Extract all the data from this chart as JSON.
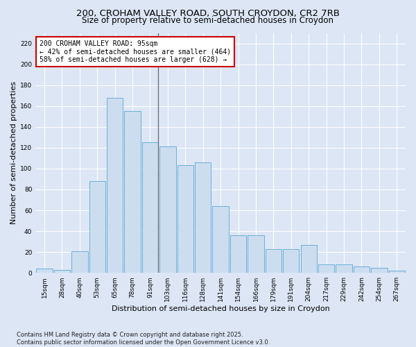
{
  "title_line1": "200, CROHAM VALLEY ROAD, SOUTH CROYDON, CR2 7RB",
  "title_line2": "Size of property relative to semi-detached houses in Croydon",
  "xlabel": "Distribution of semi-detached houses by size in Croydon",
  "ylabel": "Number of semi-detached properties",
  "categories": [
    "15sqm",
    "28sqm",
    "40sqm",
    "53sqm",
    "65sqm",
    "78sqm",
    "91sqm",
    "103sqm",
    "116sqm",
    "128sqm",
    "141sqm",
    "154sqm",
    "166sqm",
    "179sqm",
    "191sqm",
    "204sqm",
    "217sqm",
    "229sqm",
    "242sqm",
    "254sqm",
    "267sqm"
  ],
  "values": [
    4,
    3,
    21,
    88,
    168,
    155,
    125,
    121,
    103,
    106,
    64,
    36,
    36,
    23,
    23,
    27,
    8,
    8,
    6,
    5,
    2
  ],
  "bar_color": "#ccddf0",
  "bar_edge_color": "#6aaed6",
  "background_color": "#dce6f5",
  "grid_color": "#ffffff",
  "property_bin_index": 6,
  "annotation_line1": "200 CROHAM VALLEY ROAD: 95sqm",
  "annotation_line2": "← 42% of semi-detached houses are smaller (464)",
  "annotation_line3": "58% of semi-detached houses are larger (628) →",
  "annotation_box_color": "#ffffff",
  "annotation_box_edge": "#cc0000",
  "vline_color": "#666666",
  "ylim": [
    0,
    230
  ],
  "yticks": [
    0,
    20,
    40,
    60,
    80,
    100,
    120,
    140,
    160,
    180,
    200,
    220
  ],
  "footnote": "Contains HM Land Registry data © Crown copyright and database right 2025.\nContains public sector information licensed under the Open Government Licence v3.0.",
  "title_fontsize": 9.5,
  "subtitle_fontsize": 8.5,
  "axis_label_fontsize": 8,
  "tick_fontsize": 6.5,
  "annotation_fontsize": 7,
  "footnote_fontsize": 6
}
